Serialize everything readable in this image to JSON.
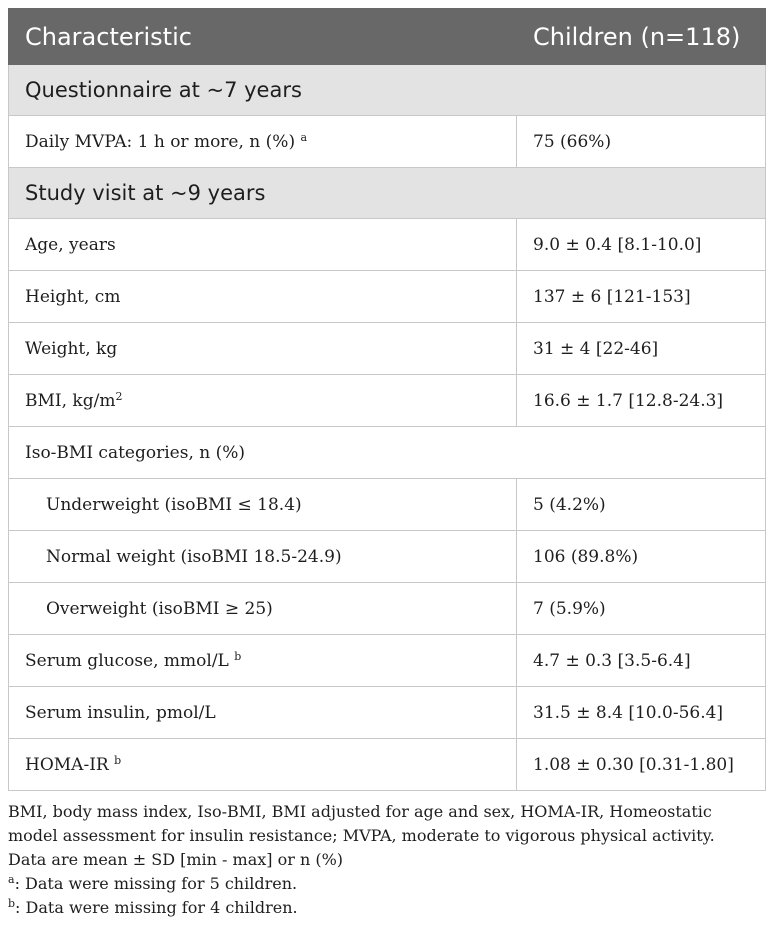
{
  "header": {
    "col1": "Characteristic",
    "col2": "Children (n=118)"
  },
  "sections": [
    {
      "title": "Questionnaire at ~7 years",
      "rows": [
        {
          "label": "Daily MVPA: 1 h or more, n (%)",
          "sup": "a",
          "value": "75 (66%)"
        }
      ]
    },
    {
      "title": "Study visit at ~9 years",
      "rows": [
        {
          "label": "Age, years",
          "value": "9.0 ± 0.4 [8.1-10.0]"
        },
        {
          "label": "Height, cm",
          "value": "137 ± 6 [121-153]"
        },
        {
          "label": "Weight, kg",
          "value": "31 ± 4 [22-46]"
        },
        {
          "label": "BMI, kg/m",
          "sup": "2",
          "value": "16.6 ± 1.7 [12.8-24.3]"
        },
        {
          "label": "Iso-BMI categories, n (%)",
          "value": ""
        },
        {
          "label": "Underweight (isoBMI ≤ 18.4)",
          "value": "5 (4.2%)"
        },
        {
          "label": "Normal weight (isoBMI 18.5-24.9)",
          "value": "106 (89.8%)"
        },
        {
          "label": "Overweight (isoBMI ≥ 25)",
          "value": "7 (5.9%)"
        },
        {
          "label": "Serum glucose, mmol/L",
          "sup": "b",
          "value": "4.7 ± 0.3 [3.5-6.4]"
        },
        {
          "label": "Serum insulin, pmol/L",
          "value": "31.5 ± 8.4 [10.0-56.4]"
        },
        {
          "label": "HOMA-IR",
          "sup": "b",
          "value": "1.08 ± 0.30 [0.31-1.80]"
        }
      ]
    }
  ],
  "notes": {
    "abbrev": "BMI, body mass index, Iso-BMI, BMI adjusted for age and sex, HOMA-IR, Homeostatic model assessment for insulin resistance; MVPA, moderate to vigorous physical activity.",
    "data_desc": "Data are mean ± SD [min - max] or n (%)",
    "note_a_mark": "a",
    "note_a": ": Data were missing for 5 children.",
    "note_b_mark": "b",
    "note_b": ": Data were missing for 4 children."
  }
}
